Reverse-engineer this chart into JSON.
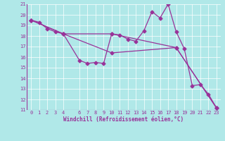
{
  "xlabel": "Windchill (Refroidissement éolien,°C)",
  "xlim": [
    -0.5,
    23.5
  ],
  "ylim": [
    11,
    21
  ],
  "yticks": [
    11,
    12,
    13,
    14,
    15,
    16,
    17,
    18,
    19,
    20,
    21
  ],
  "xticks": [
    0,
    1,
    2,
    3,
    4,
    6,
    7,
    8,
    9,
    10,
    11,
    12,
    13,
    14,
    15,
    16,
    17,
    18,
    19,
    20,
    21,
    22,
    23
  ],
  "bg_color": "#b0e8e8",
  "grid_color": "#ffffff",
  "line_color": "#993399",
  "line1_x": [
    0,
    1,
    2,
    3,
    4,
    6,
    7,
    8,
    9,
    10,
    11,
    12,
    13,
    14,
    15,
    16,
    17,
    18,
    19,
    20,
    21,
    22,
    23
  ],
  "line1_y": [
    19.5,
    19.3,
    18.7,
    18.4,
    18.2,
    15.7,
    15.4,
    15.5,
    15.4,
    18.2,
    18.1,
    17.7,
    17.5,
    18.5,
    20.3,
    19.7,
    21.0,
    18.4,
    16.8,
    13.3,
    13.4,
    12.5,
    11.2
  ],
  "line2_x": [
    0,
    4,
    10,
    18,
    23
  ],
  "line2_y": [
    19.5,
    18.2,
    18.2,
    16.9,
    11.2
  ],
  "line3_x": [
    0,
    4,
    10,
    18,
    23
  ],
  "line3_y": [
    19.5,
    18.2,
    16.4,
    16.9,
    11.2
  ],
  "markersize": 2.5,
  "linewidth": 0.9,
  "tick_fontsize": 5,
  "xlabel_fontsize": 5.5
}
